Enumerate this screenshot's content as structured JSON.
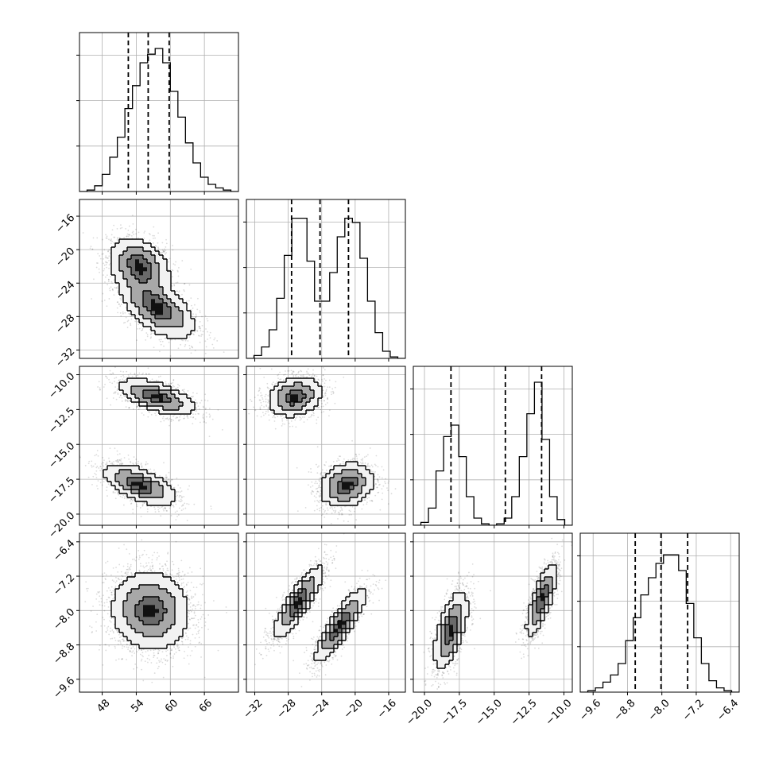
{
  "chart_data": {
    "type": "corner",
    "grid": true,
    "params": [
      {
        "range": [
          44,
          72
        ],
        "ticks": [
          48,
          54,
          60,
          66
        ],
        "tick_labels": [
          "48",
          "54",
          "60",
          "66"
        ],
        "quantiles": [
          52.6,
          56.1,
          59.8
        ],
        "hist": [
          0,
          0.01,
          0.04,
          0.12,
          0.24,
          0.38,
          0.58,
          0.74,
          0.9,
          0.96,
          1.0,
          0.9,
          0.7,
          0.52,
          0.34,
          0.2,
          0.1,
          0.05,
          0.025,
          0.01,
          0
        ]
      },
      {
        "range": [
          -33,
          -14
        ],
        "ticks": [
          -32,
          -28,
          -24,
          -20,
          -16
        ],
        "tick_labels": [
          "−32",
          "−28",
          "−24",
          "−20",
          "−16"
        ],
        "quantiles": [
          -27.6,
          -24.2,
          -20.8
        ],
        "hist": [
          0,
          0.02,
          0.08,
          0.2,
          0.42,
          0.72,
          0.98,
          0.98,
          0.68,
          0.4,
          0.4,
          0.6,
          0.85,
          0.98,
          0.95,
          0.7,
          0.4,
          0.18,
          0.05,
          0.01,
          0
        ]
      },
      {
        "range": [
          -20.8,
          -9.4
        ],
        "ticks": [
          -20.0,
          -17.5,
          -15.0,
          -12.5,
          -10.0
        ],
        "tick_labels": [
          "−20.0",
          "−17.5",
          "−15.0",
          "−12.5",
          "−10.0"
        ],
        "quantiles": [
          -18.1,
          -14.2,
          -11.6
        ],
        "hist": [
          0,
          0.02,
          0.12,
          0.38,
          0.62,
          0.7,
          0.48,
          0.2,
          0.05,
          0.01,
          0,
          0.01,
          0.05,
          0.2,
          0.48,
          0.78,
          1.0,
          0.6,
          0.2,
          0.04,
          0
        ]
      },
      {
        "range": [
          -9.9,
          -6.2
        ],
        "ticks": [
          -9.6,
          -8.8,
          -8.0,
          -7.2,
          -6.4
        ],
        "tick_labels": [
          "−9.6",
          "−8.8",
          "−8.0",
          "−7.2",
          "−6.4"
        ],
        "quantiles": [
          -8.62,
          -8.02,
          -7.4
        ],
        "hist": [
          0,
          0.01,
          0.03,
          0.07,
          0.12,
          0.2,
          0.36,
          0.52,
          0.68,
          0.8,
          0.9,
          0.96,
          0.96,
          0.85,
          0.62,
          0.38,
          0.2,
          0.08,
          0.03,
          0.01,
          0
        ]
      }
    ],
    "pairs": [
      {
        "row": 1,
        "col": 0,
        "modes": [
          {
            "mx": 54.6,
            "my": -22.0,
            "sx": 2.6,
            "sy": 1.7,
            "rho": -0.3,
            "w": 1
          },
          {
            "mx": 57.8,
            "my": -27.0,
            "sx": 3.2,
            "sy": 1.8,
            "rho": -0.55,
            "w": 1
          }
        ]
      },
      {
        "row": 2,
        "col": 0,
        "modes": [
          {
            "mx": 57.6,
            "my": -11.6,
            "sx": 3.3,
            "sy": 0.65,
            "rho": -0.6,
            "w": 1
          },
          {
            "mx": 54.6,
            "my": -17.9,
            "sx": 3.2,
            "sy": 0.75,
            "rho": -0.6,
            "w": 1
          }
        ]
      },
      {
        "row": 2,
        "col": 1,
        "modes": [
          {
            "mx": -27.2,
            "my": -11.6,
            "sx": 1.6,
            "sy": 0.7,
            "rho": 0.2,
            "w": 1
          },
          {
            "mx": -21.0,
            "my": -17.9,
            "sx": 1.6,
            "sy": 0.8,
            "rho": 0.2,
            "w": 1
          }
        ]
      },
      {
        "row": 3,
        "col": 0,
        "modes": [
          {
            "mx": 56.5,
            "my": -8.0,
            "sx": 3.4,
            "sy": 0.45,
            "rho": -0.05,
            "w": 1
          }
        ]
      },
      {
        "row": 3,
        "col": 1,
        "modes": [
          {
            "mx": -26.8,
            "my": -7.8,
            "sx": 1.5,
            "sy": 0.42,
            "rho": 0.85,
            "w": 1
          },
          {
            "mx": -21.8,
            "my": -8.35,
            "sx": 1.5,
            "sy": 0.42,
            "rho": 0.85,
            "w": 1
          }
        ]
      },
      {
        "row": 3,
        "col": 2,
        "modes": [
          {
            "mx": -18.1,
            "my": -8.45,
            "sx": 0.6,
            "sy": 0.45,
            "rho": 0.6,
            "w": 1
          },
          {
            "mx": -11.6,
            "my": -7.75,
            "sx": 0.55,
            "sy": 0.42,
            "rho": 0.75,
            "w": 1
          }
        ]
      }
    ]
  }
}
